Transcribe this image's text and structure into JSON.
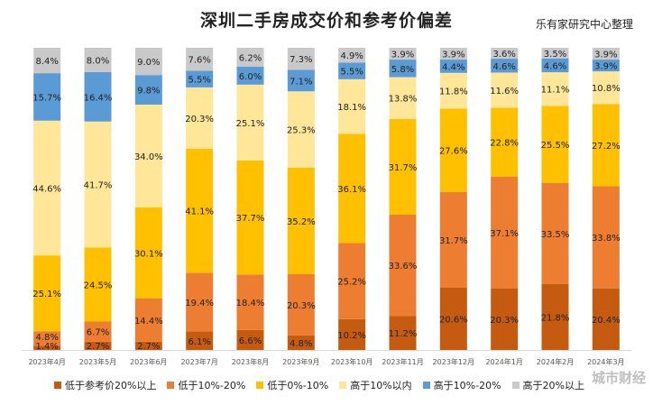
{
  "header": {
    "title": "深圳二手房成交价和参考价偏差",
    "source": "乐有家研究中心整理"
  },
  "watermark": "城市财经",
  "chart_data": {
    "type": "bar",
    "stacked": true,
    "percent": true,
    "categories": [
      "2023年4月",
      "2023年5月",
      "2023年6月",
      "2023年7月",
      "2023年8月",
      "2023年9月",
      "2023年10月",
      "2023年11月",
      "2023年12月",
      "2024年1月",
      "2024年2月",
      "2024年3月"
    ],
    "series": [
      {
        "name": "低于参考价20%以上",
        "color": "#c55a11",
        "values": [
          1.4,
          2.7,
          2.7,
          6.1,
          6.6,
          4.8,
          10.2,
          11.2,
          20.6,
          20.3,
          21.8,
          20.4
        ]
      },
      {
        "name": "低于10%-20%",
        "color": "#ed7d31",
        "values": [
          4.8,
          6.7,
          14.4,
          19.4,
          18.4,
          20.3,
          25.2,
          33.6,
          31.7,
          37.1,
          33.5,
          33.8
        ]
      },
      {
        "name": "低于0%-10%",
        "color": "#ffc000",
        "values": [
          25.1,
          24.5,
          30.1,
          41.1,
          37.7,
          35.2,
          36.1,
          31.7,
          27.6,
          22.8,
          25.5,
          27.2
        ]
      },
      {
        "name": "高于10%以内",
        "color": "#ffe699",
        "values": [
          44.6,
          41.7,
          34.0,
          20.3,
          25.1,
          25.3,
          18.1,
          13.8,
          11.8,
          11.6,
          11.1,
          10.8
        ]
      },
      {
        "name": "高于10%-20%",
        "color": "#5b9bd5",
        "values": [
          15.7,
          16.4,
          9.8,
          5.5,
          6.0,
          7.1,
          5.5,
          5.8,
          4.4,
          4.6,
          4.6,
          3.9
        ]
      },
      {
        "name": "高于20%以上",
        "color": "#c9c9c9",
        "values": [
          8.4,
          8.0,
          9.0,
          7.6,
          6.2,
          7.3,
          4.9,
          3.9,
          3.9,
          3.6,
          3.5,
          3.9
        ]
      }
    ],
    "ylim": [
      0,
      100
    ],
    "legend_position": "bottom",
    "grid": false
  }
}
